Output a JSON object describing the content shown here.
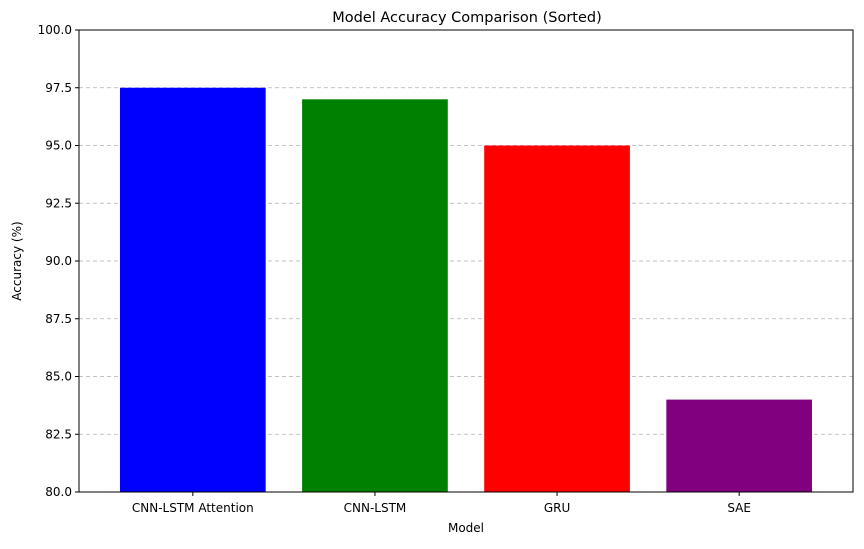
{
  "chart_data": {
    "type": "bar",
    "title": "Model Accuracy Comparison (Sorted)",
    "xlabel": "Model",
    "ylabel": "Accuracy (%)",
    "categories": [
      "CNN-LSTM Attention",
      "CNN-LSTM",
      "GRU",
      "SAE"
    ],
    "values": [
      97.5,
      97.0,
      95.0,
      84.0
    ],
    "colors": [
      "#0000ff",
      "#008000",
      "#ff0000",
      "#800080"
    ],
    "ylim": [
      80,
      100
    ],
    "yticks": [
      "80.0",
      "82.5",
      "85.0",
      "87.5",
      "90.0",
      "92.5",
      "95.0",
      "97.5",
      "100.0"
    ],
    "grid": "y-axis dashed"
  }
}
